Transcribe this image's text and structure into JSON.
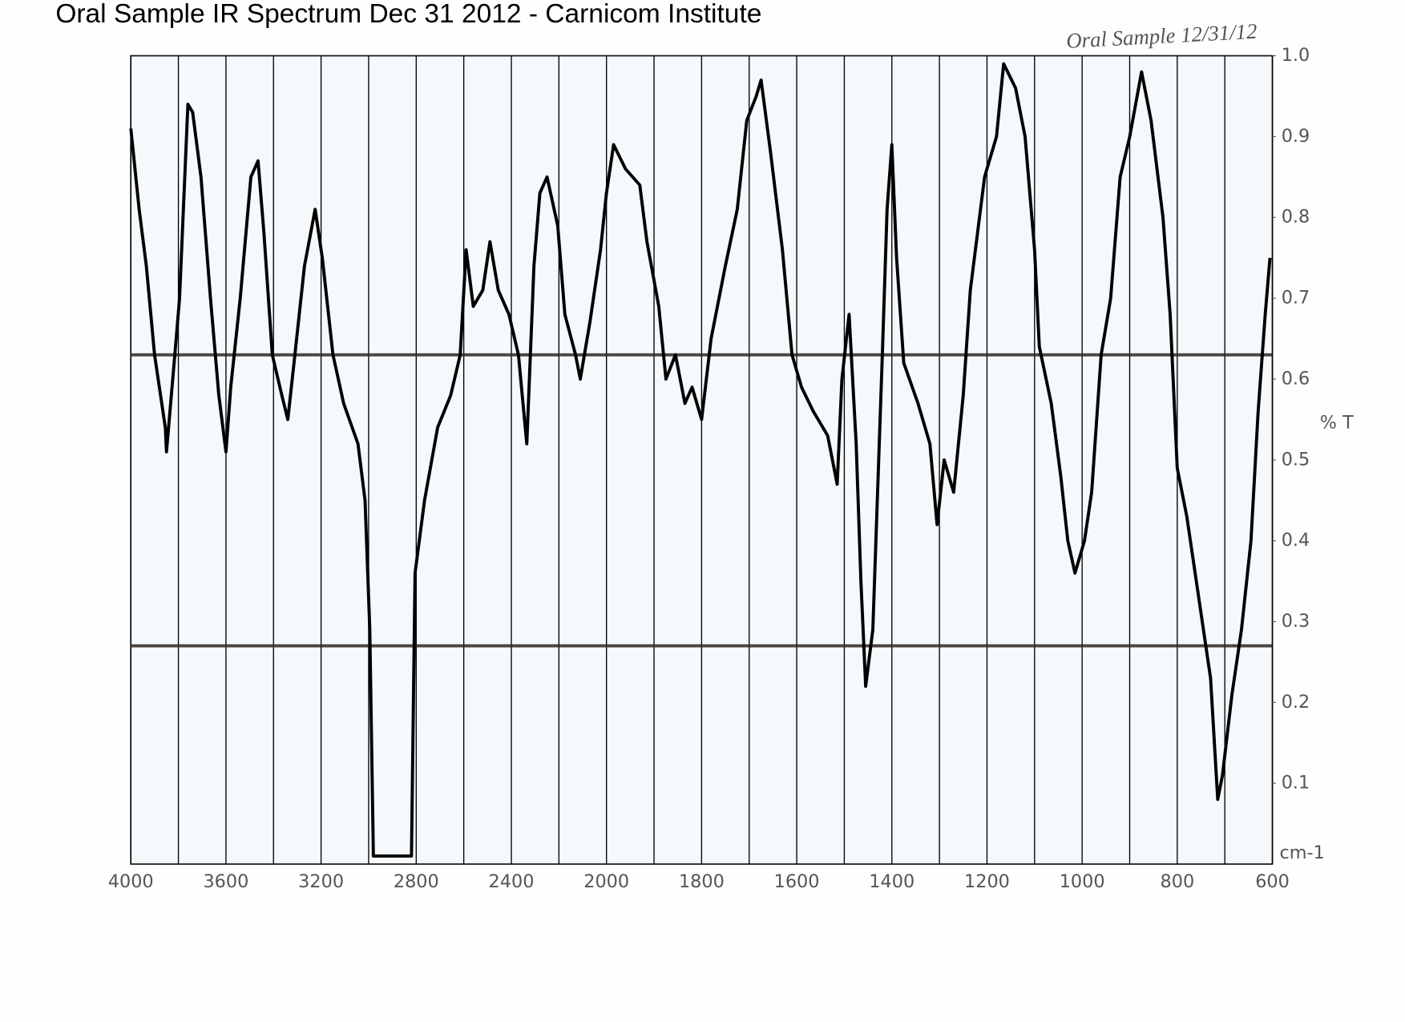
{
  "chart_data": {
    "type": "line",
    "title": "Oral Sample IR Spectrum Dec 31 2012 - Carnicom Institute",
    "annotation": "Oral Sample 12/31/12",
    "ylabel": "% T",
    "xlabel": "cm-1",
    "xlim": [
      4000,
      600
    ],
    "ylim": [
      0,
      1
    ],
    "xticks": [
      4000,
      3600,
      3200,
      2800,
      2400,
      2000,
      1800,
      1600,
      1400,
      1200,
      1000,
      800,
      600
    ],
    "xgrid": [
      4000,
      3800,
      3600,
      3400,
      3200,
      3000,
      2800,
      2600,
      2400,
      2200,
      2000,
      1900,
      1800,
      1700,
      1600,
      1500,
      1400,
      1300,
      1200,
      1100,
      1000,
      900,
      800,
      700,
      600
    ],
    "yticks": [
      {
        "value": 1,
        "label": "1.0"
      },
      0.9,
      0.8,
      0.7,
      0.6,
      0.5,
      0.4,
      0.3,
      0.2,
      0.1
    ],
    "hlines": [
      0.63,
      0.27
    ],
    "hline_color": "#2e2620",
    "color": "#000000",
    "x": [
      4000,
      3965,
      3935,
      3900,
      3855,
      3850,
      3815,
      3795,
      3760,
      3740,
      3705,
      3665,
      3630,
      3600,
      3580,
      3540,
      3495,
      3465,
      3440,
      3405,
      3365,
      3340,
      3310,
      3270,
      3225,
      3195,
      3150,
      3105,
      3045,
      3015,
      2995,
      2980,
      2820,
      2805,
      2765,
      2710,
      2655,
      2615,
      2590,
      2560,
      2520,
      2490,
      2455,
      2410,
      2370,
      2335,
      2305,
      2280,
      2250,
      2205,
      2175,
      2130,
      2110,
      2070,
      2025,
      2000,
      1985,
      1960,
      1930,
      1915,
      1890,
      1875,
      1855,
      1835,
      1820,
      1800,
      1780,
      1750,
      1725,
      1705,
      1685,
      1675,
      1655,
      1630,
      1610,
      1590,
      1565,
      1535,
      1515,
      1505,
      1490,
      1475,
      1465,
      1455,
      1440,
      1420,
      1410,
      1400,
      1390,
      1375,
      1345,
      1320,
      1305,
      1290,
      1270,
      1250,
      1235,
      1205,
      1180,
      1165,
      1140,
      1120,
      1100,
      1090,
      1065,
      1045,
      1030,
      1015,
      995,
      980,
      960,
      940,
      920,
      900,
      875,
      855,
      830,
      815,
      800,
      780,
      760,
      740,
      730,
      715,
      705,
      685,
      665,
      645,
      630,
      615,
      605
    ],
    "values": [
      0.91,
      0.81,
      0.74,
      0.63,
      0.54,
      0.51,
      0.63,
      0.7,
      0.94,
      0.93,
      0.85,
      0.7,
      0.58,
      0.51,
      0.59,
      0.7,
      0.85,
      0.87,
      0.78,
      0.63,
      0.58,
      0.55,
      0.63,
      0.74,
      0.81,
      0.75,
      0.63,
      0.57,
      0.52,
      0.45,
      0.29,
      0.01,
      0.01,
      0.36,
      0.45,
      0.54,
      0.58,
      0.63,
      0.76,
      0.69,
      0.71,
      0.77,
      0.71,
      0.68,
      0.63,
      0.52,
      0.74,
      0.83,
      0.85,
      0.79,
      0.68,
      0.63,
      0.6,
      0.67,
      0.76,
      0.83,
      0.89,
      0.86,
      0.84,
      0.77,
      0.69,
      0.6,
      0.63,
      0.57,
      0.59,
      0.55,
      0.65,
      0.74,
      0.81,
      0.92,
      0.95,
      0.97,
      0.88,
      0.76,
      0.63,
      0.59,
      0.56,
      0.53,
      0.47,
      0.6,
      0.68,
      0.52,
      0.35,
      0.22,
      0.29,
      0.63,
      0.81,
      0.89,
      0.75,
      0.62,
      0.57,
      0.52,
      0.42,
      0.5,
      0.46,
      0.58,
      0.71,
      0.85,
      0.9,
      0.99,
      0.96,
      0.9,
      0.76,
      0.64,
      0.57,
      0.48,
      0.4,
      0.36,
      0.4,
      0.46,
      0.63,
      0.7,
      0.85,
      0.9,
      0.98,
      0.92,
      0.8,
      0.68,
      0.49,
      0.43,
      0.35,
      0.27,
      0.23,
      0.08,
      0.11,
      0.21,
      0.29,
      0.4,
      0.56,
      0.68,
      0.75
    ]
  }
}
